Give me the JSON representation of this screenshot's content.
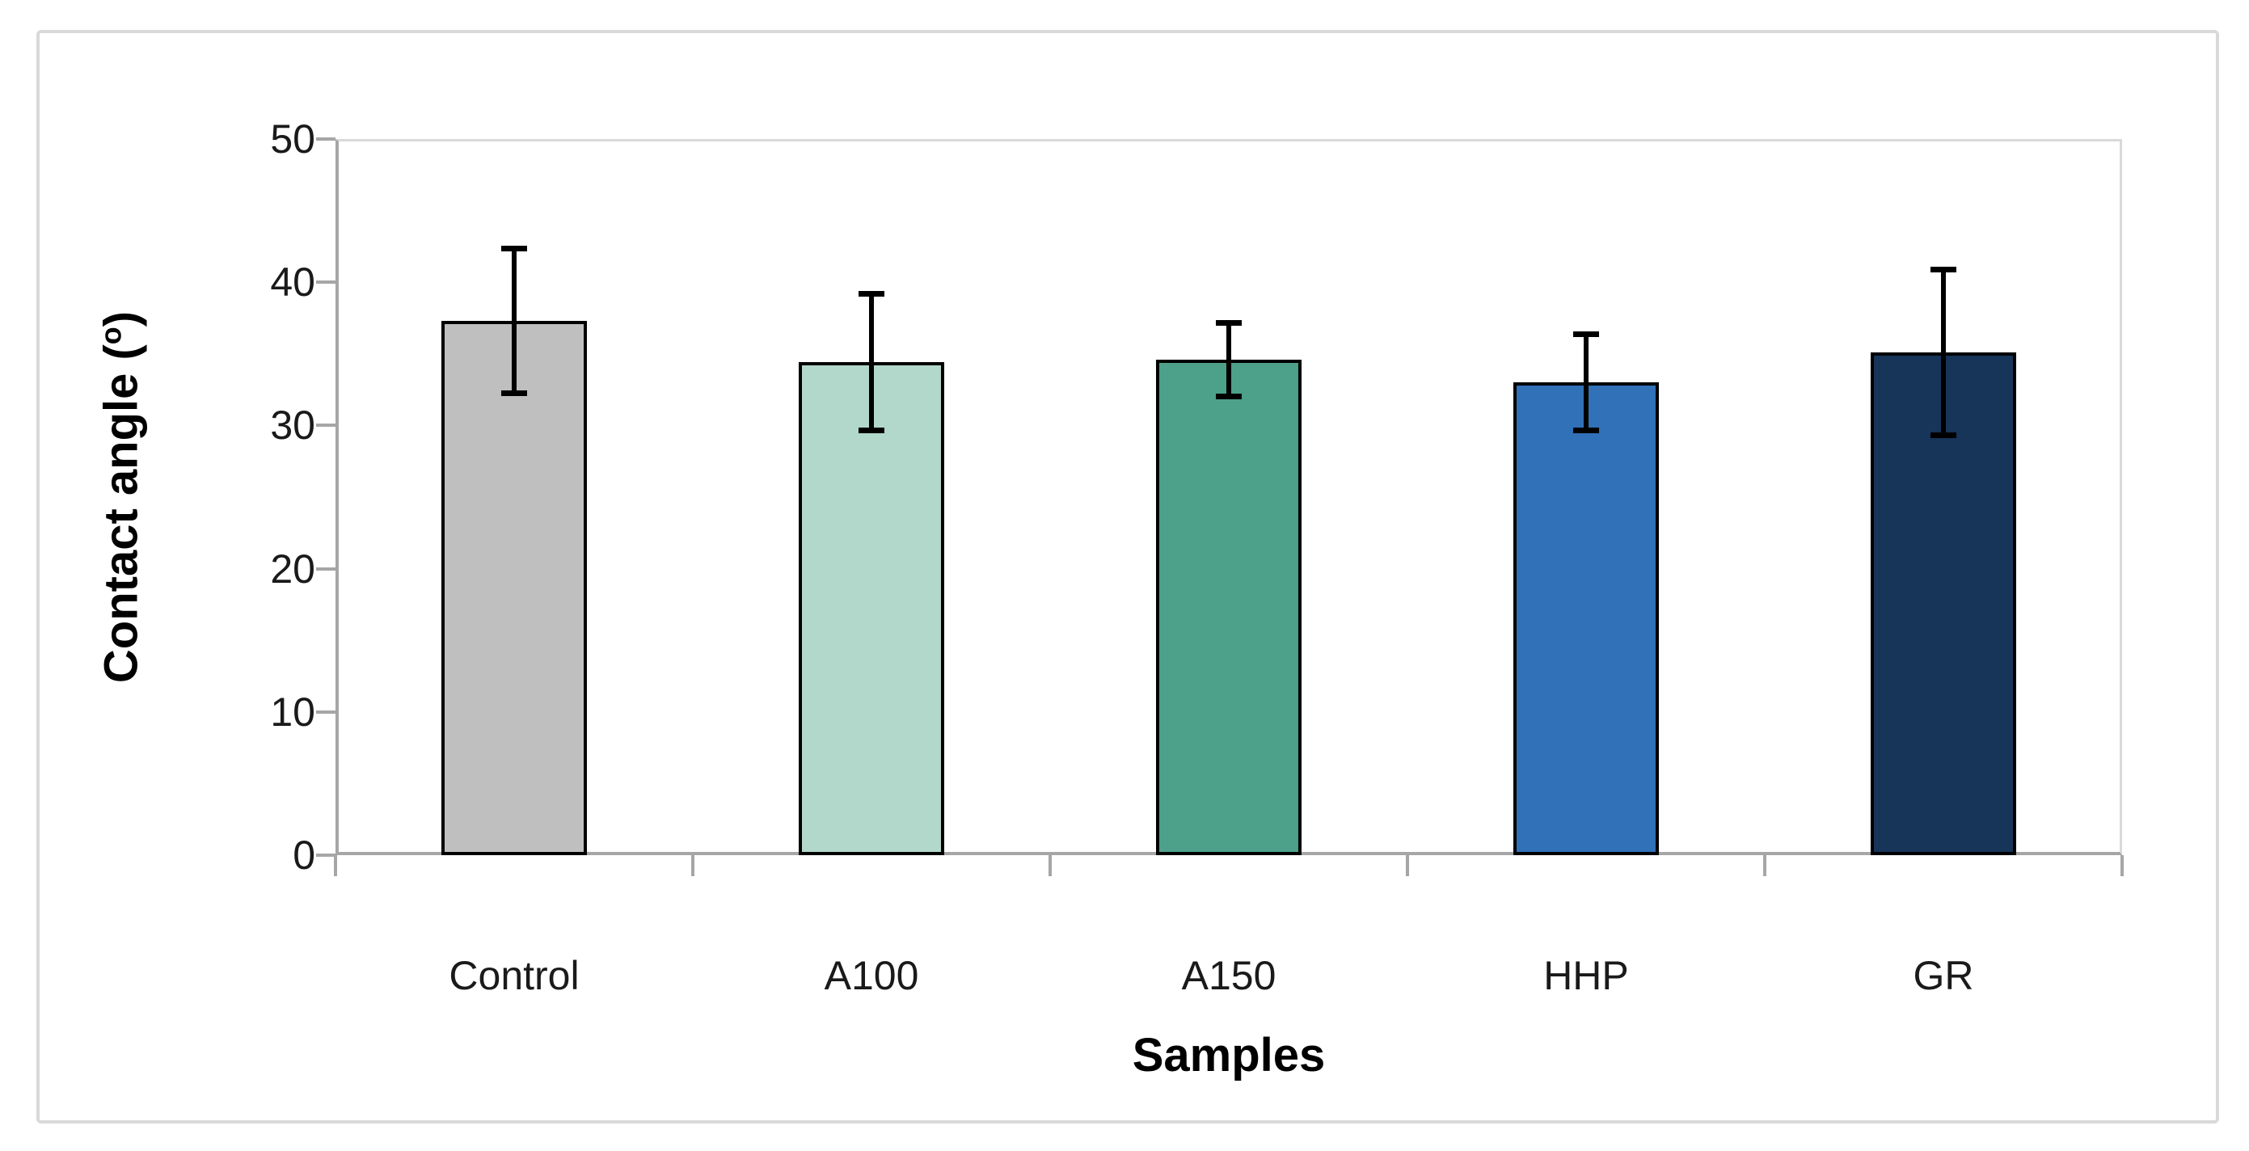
{
  "figure": {
    "background": "#ffffff",
    "border_color": "#d9d9d9"
  },
  "chart_data": {
    "type": "bar",
    "title": "",
    "xlabel": "Samples",
    "ylabel": "Contact angle (°)",
    "ylabel_parts": {
      "prefix": "Contact angle (",
      "sup": "o",
      "suffix": ")"
    },
    "categories": [
      "Control",
      "A100",
      "A150",
      "HHP",
      "GR"
    ],
    "values": [
      37.3,
      34.4,
      34.6,
      33.0,
      35.1
    ],
    "errors": [
      5.1,
      4.8,
      2.6,
      3.4,
      5.8
    ],
    "bar_colors": [
      "#bfbfbf",
      "#b1d8cb",
      "#4da08a",
      "#3071b7",
      "#173459"
    ],
    "bar_border_color": "#000000",
    "error_bar_color": "#000000",
    "ylim": [
      0,
      50
    ],
    "yticks": [
      0,
      10,
      20,
      30,
      40,
      50
    ],
    "grid": "off",
    "legend": "none",
    "axis_color": "#a6a6a6",
    "frame_color": "#d9d9d9",
    "text_color": "#1a1a1a"
  }
}
